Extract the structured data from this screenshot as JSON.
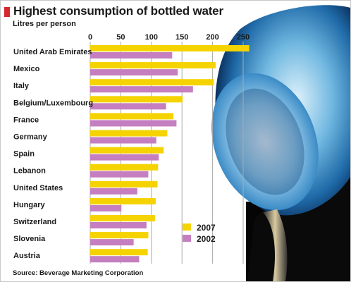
{
  "title": "Highest consumption of bottled water",
  "subtitle": "Litres per person",
  "source": "Source: Beverage Marketing Corporation",
  "colors": {
    "accent_tab": "#d7282f",
    "series_2007": "#f5d300",
    "series_2002": "#c57fc0",
    "grid": "#aaaaaa"
  },
  "chart_data": {
    "type": "bar",
    "orientation": "horizontal",
    "categories": [
      "United Arab Emirates",
      "Mexico",
      "Italy",
      "Belgium/Luxembourg",
      "France",
      "Germany",
      "Spain",
      "Lebanon",
      "United States",
      "Hungary",
      "Switzerland",
      "Slovenia",
      "Austria"
    ],
    "series": [
      {
        "name": "2007",
        "color": "#f5d300",
        "values": [
          260,
          205,
          202,
          151,
          136,
          126,
          120,
          111,
          110,
          107,
          106,
          95,
          94
        ]
      },
      {
        "name": "2002",
        "color": "#c57fc0",
        "values": [
          134,
          143,
          168,
          124,
          141,
          108,
          112,
          95,
          77,
          51,
          92,
          71,
          80
        ]
      }
    ],
    "xlim": [
      0,
      250
    ],
    "xticks": [
      "0",
      "50",
      "100",
      "150",
      "200",
      "250"
    ],
    "grid": true,
    "legend": "bottom-right"
  }
}
